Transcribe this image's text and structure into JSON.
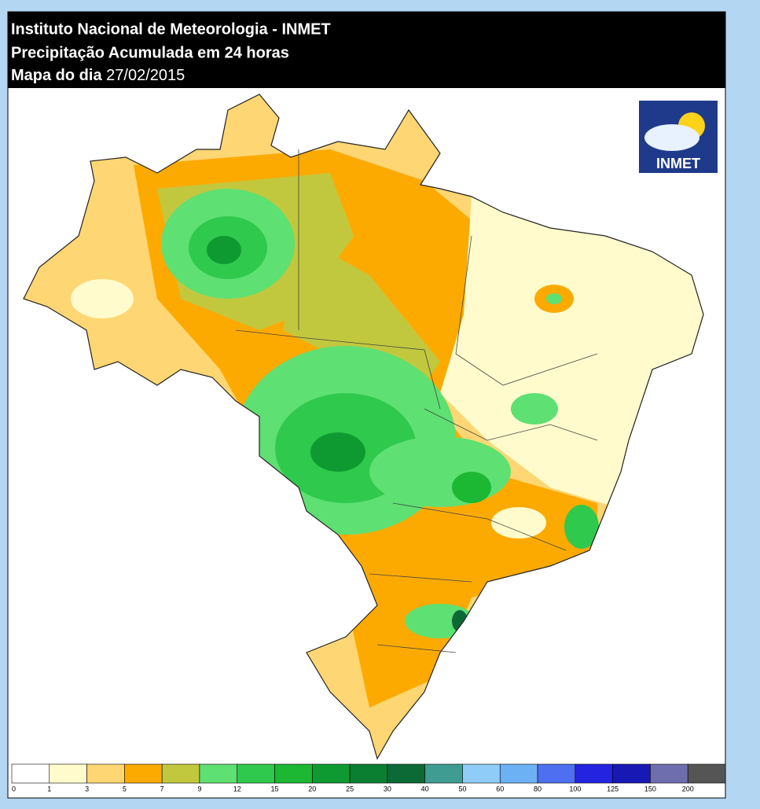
{
  "header": {
    "line1": "Instituto Nacional de Meteorologia - INMET",
    "line2": "Precipitação Acumulada em 24 horas",
    "line3_label": "Mapa do dia",
    "line3_date": "27/02/2015"
  },
  "logo": {
    "text": "INMET"
  },
  "legend": {
    "thresholds": [
      0,
      1,
      3,
      5,
      7,
      9,
      12,
      15,
      20,
      25,
      30,
      40,
      50,
      60,
      80,
      100,
      125,
      150,
      200
    ],
    "colors": [
      "#ffffff",
      "#fffbcc",
      "#fed673",
      "#fdaa00",
      "#c2c83e",
      "#5ee072",
      "#2fc94d",
      "#1cb733",
      "#0f9a31",
      "#0b7f31",
      "#0b6a36",
      "#3e9c92",
      "#8fccf7",
      "#6db1f5",
      "#4e6ff0",
      "#2424e0",
      "#1818b5",
      "#6e6eae",
      "#555555"
    ]
  }
}
